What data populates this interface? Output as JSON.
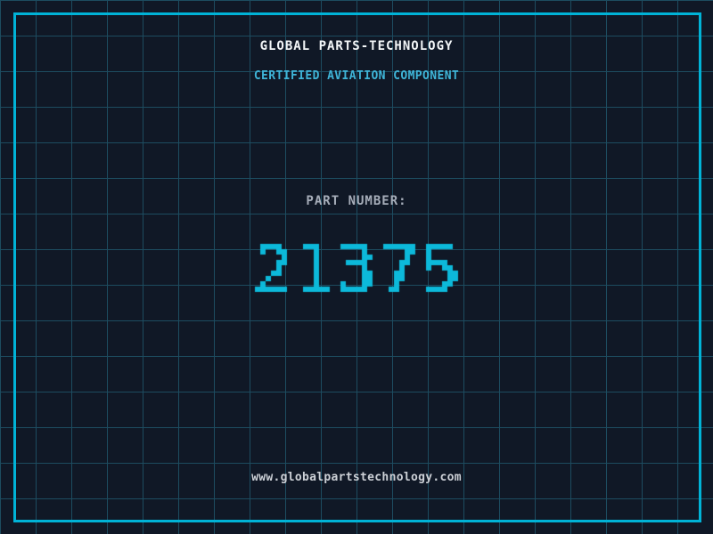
{
  "header": {
    "title": "GLOBAL PARTS-TECHNOLOGY",
    "subtitle": "CERTIFIED AVIATION COMPONENT"
  },
  "part_number": {
    "label": "PART NUMBER:",
    "value": "21375"
  },
  "footer": {
    "website": "www.globalpartstechnology.com"
  },
  "colors": {
    "background": "#101826",
    "grid_line": "#1d4c60",
    "frame": "#00b3d7",
    "title": "#f2f5f7",
    "subtitle": "#3fb5d8",
    "label": "#a6adb9",
    "number": "#0cb9da",
    "footer_text": "#ccd0d6"
  }
}
